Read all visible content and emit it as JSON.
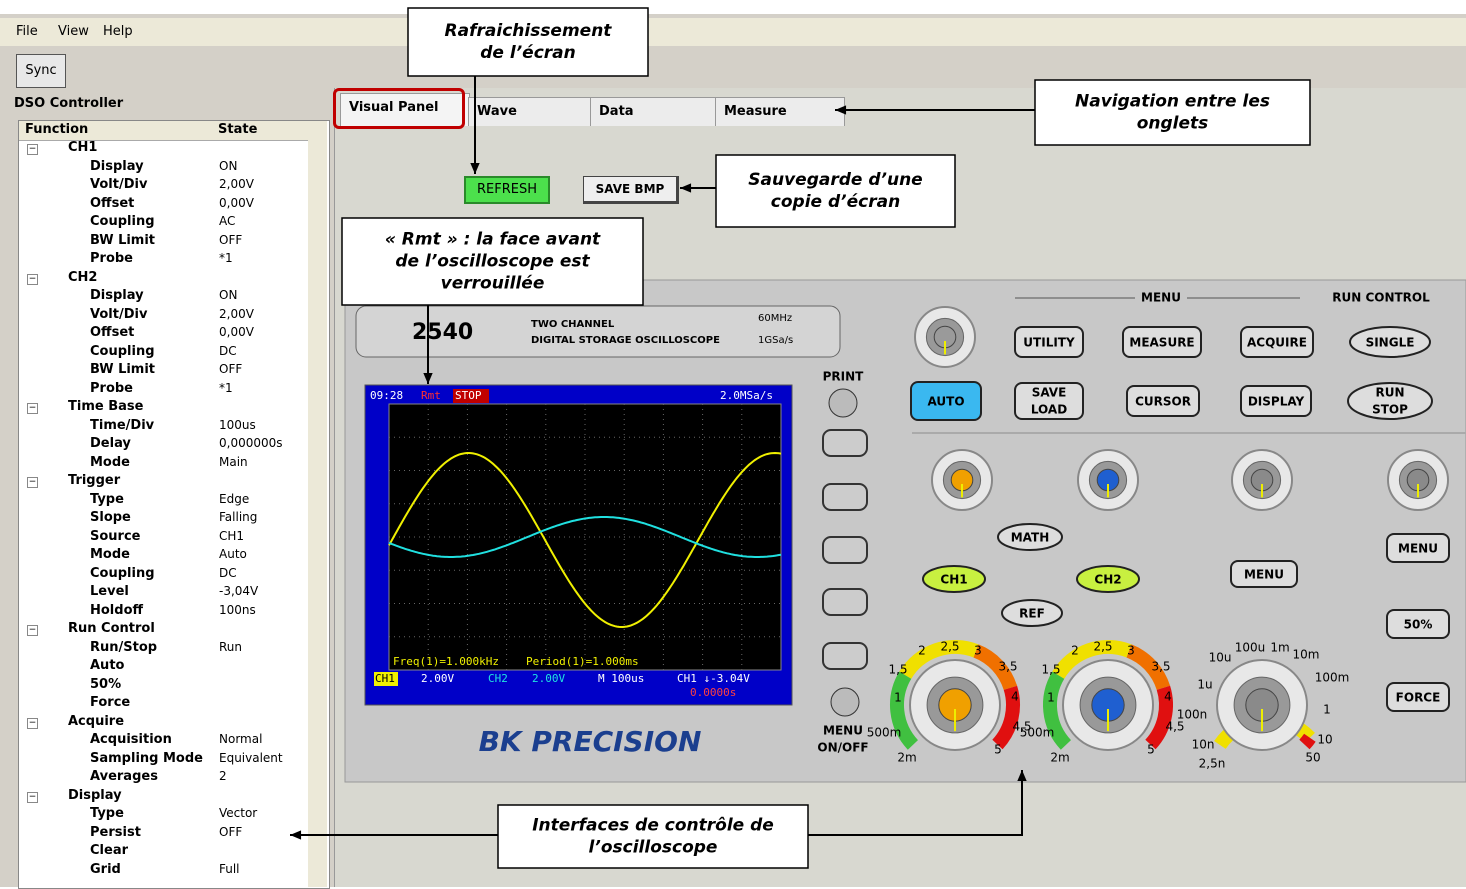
{
  "menu": [
    "File",
    "View",
    "Help"
  ],
  "sync": "Sync",
  "panel_title": "DSO Controller",
  "tree": {
    "headers": [
      "Function",
      "State"
    ],
    "groups": [
      {
        "name": "CH1",
        "items": [
          {
            "function": "Display",
            "state": "ON"
          },
          {
            "function": "Volt/Div",
            "state": "2,00V"
          },
          {
            "function": "Offset",
            "state": "0,00V"
          },
          {
            "function": "Coupling",
            "state": "AC"
          },
          {
            "function": "BW Limit",
            "state": "OFF"
          },
          {
            "function": "Probe",
            "state": "*1"
          }
        ]
      },
      {
        "name": "CH2",
        "items": [
          {
            "function": "Display",
            "state": "ON"
          },
          {
            "function": "Volt/Div",
            "state": "2,00V"
          },
          {
            "function": "Offset",
            "state": "0,00V"
          },
          {
            "function": "Coupling",
            "state": "DC"
          },
          {
            "function": "BW Limit",
            "state": "OFF"
          },
          {
            "function": "Probe",
            "state": "*1"
          }
        ]
      },
      {
        "name": "Time Base",
        "items": [
          {
            "function": "Time/Div",
            "state": "100us"
          },
          {
            "function": "Delay",
            "state": "0,000000s"
          },
          {
            "function": "Mode",
            "state": "Main"
          }
        ]
      },
      {
        "name": "Trigger",
        "items": [
          {
            "function": "Type",
            "state": "Edge"
          },
          {
            "function": "Slope",
            "state": "Falling"
          },
          {
            "function": "Source",
            "state": "CH1"
          },
          {
            "function": "Mode",
            "state": "Auto"
          },
          {
            "function": "Coupling",
            "state": "DC"
          },
          {
            "function": "Level",
            "state": "-3,04V"
          },
          {
            "function": "Holdoff",
            "state": "100ns"
          }
        ]
      },
      {
        "name": "Run Control",
        "items": [
          {
            "function": "Run/Stop",
            "state": "Run"
          },
          {
            "function": "Auto"
          },
          {
            "function": "50%"
          },
          {
            "function": "Force"
          }
        ]
      },
      {
        "name": "Acquire",
        "items": [
          {
            "function": "Acquisition",
            "state": "Normal"
          },
          {
            "function": "Sampling Mode",
            "state": "Equivalent"
          },
          {
            "function": "Averages",
            "state": "2"
          }
        ]
      },
      {
        "name": "Display",
        "items": [
          {
            "function": "Type",
            "state": "Vector"
          },
          {
            "function": "Persist",
            "state": "OFF"
          },
          {
            "function": "Clear"
          },
          {
            "function": "Grid",
            "state": "Full"
          }
        ]
      }
    ]
  },
  "tabs": [
    "Visual Panel",
    "Wave",
    "Data",
    "Measure"
  ],
  "refresh": "REFRESH",
  "save_bmp": "SAVE BMP",
  "annotations": [
    {
      "lines": [
        "Rafraichissement",
        "de l’écran"
      ]
    },
    {
      "lines": [
        "Navigation entre les",
        "onglets"
      ]
    },
    {
      "lines": [
        "Sauvegarde d’une",
        "copie d’écran"
      ]
    },
    {
      "lines": [
        "« Rmt » : la face avant",
        "de l’oscilloscope est",
        "verrouillée"
      ]
    },
    {
      "lines": [
        "Interfaces de contrôle de",
        "l’oscilloscope"
      ]
    }
  ],
  "scope": {
    "model": "2540",
    "desc": [
      "TWO CHANNEL",
      "DIGITAL STORAGE OSCILLOSCOPE"
    ],
    "bandwidth": "60MHz",
    "rate": "1GSa/s",
    "brand": "BK PRECISION",
    "screen": {
      "time": "09:28",
      "rmt": "Rmt",
      "stop": "STOP",
      "sample": "2.0MSa/s",
      "freq": "Freq(1)=1.000kHz",
      "period": "Period(1)=1.000ms",
      "ch1": "CH1",
      "ch1_v": "2.00V",
      "ch2": "CH2",
      "ch2_v": "2.00V",
      "timebase": "M 100us",
      "trig": "CH1 ↓-3.04V",
      "delay": "0.0000s"
    },
    "labels": {
      "print": "PRINT",
      "menu_onoff": [
        "MENU",
        "ON/OFF"
      ],
      "menu_header": "MENU",
      "run_control": "RUN CONTROL"
    },
    "buttons": [
      "UTILITY",
      "MEASURE",
      "ACQUIRE",
      "SINGLE",
      "AUTO",
      [
        "SAVE",
        "LOAD"
      ],
      "CURSOR",
      "DISPLAY",
      [
        "RUN",
        "STOP"
      ],
      "MATH",
      "CH1",
      "CH2",
      "REF",
      "MENU",
      "MENU",
      "50%",
      "FORCE"
    ],
    "dials": [
      [
        "2",
        "2,5",
        "3",
        "1,5",
        "3,5",
        "1",
        "4",
        "500m",
        "4,5",
        "2m",
        "5"
      ],
      [
        "2",
        "2,5",
        "3",
        "1,5",
        "3,5",
        "1",
        "4",
        "500m",
        "4,5",
        "2m",
        "5"
      ],
      [
        "100u",
        "1m",
        "10u",
        "10m",
        "1u",
        "100m",
        "100n",
        "1",
        "10n",
        "10",
        "2,5n",
        "50"
      ]
    ]
  }
}
